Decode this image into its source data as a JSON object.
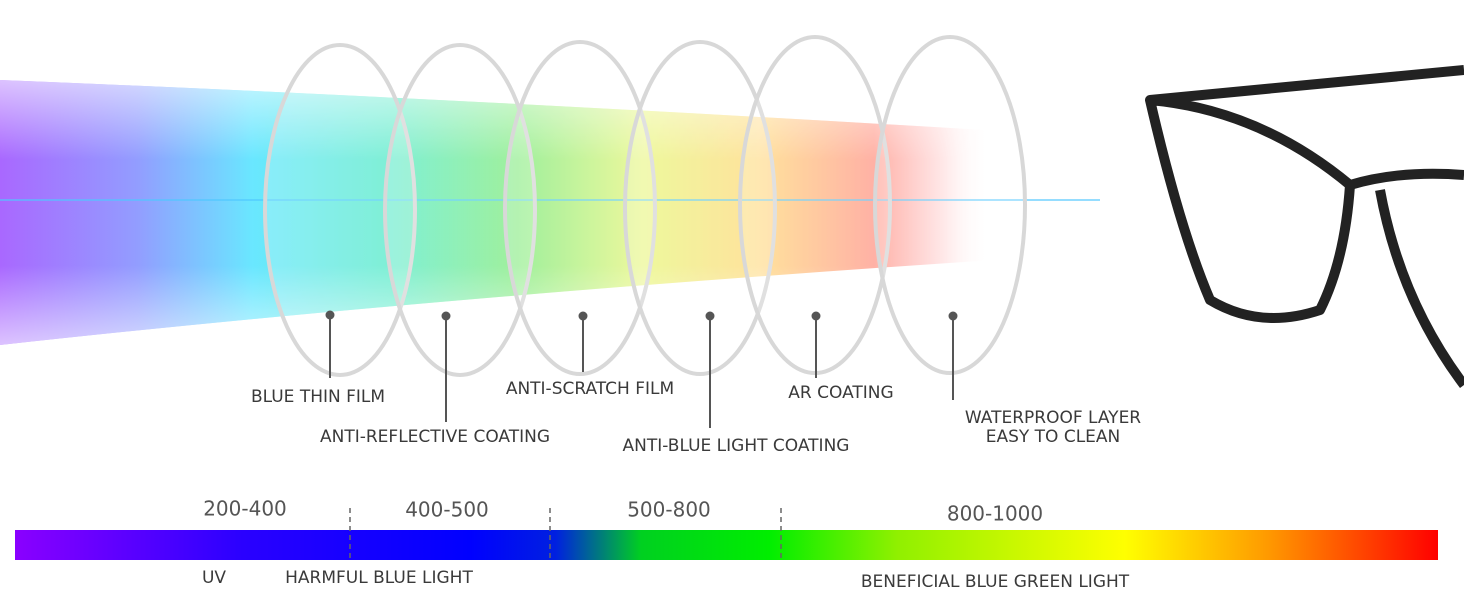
{
  "layers": [
    {
      "label": "BLUE THIN FILM"
    },
    {
      "label": "ANTI-REFLECTIVE COATING"
    },
    {
      "label": "ANTI-SCRATCH FILM"
    },
    {
      "label": "ANTI-BLUE LIGHT COATING"
    },
    {
      "label": "AR COATING"
    },
    {
      "lines": [
        "WATERPROOF LAYER",
        "EASY TO CLEAN"
      ]
    }
  ],
  "spectrum": {
    "ranges": [
      "200-400",
      "400-500",
      "500-800",
      "800-1000"
    ],
    "labels": [
      "UV",
      "HARMFUL BLUE LIGHT",
      "BENEFICIAL BLUE GREEN LIGHT"
    ]
  }
}
